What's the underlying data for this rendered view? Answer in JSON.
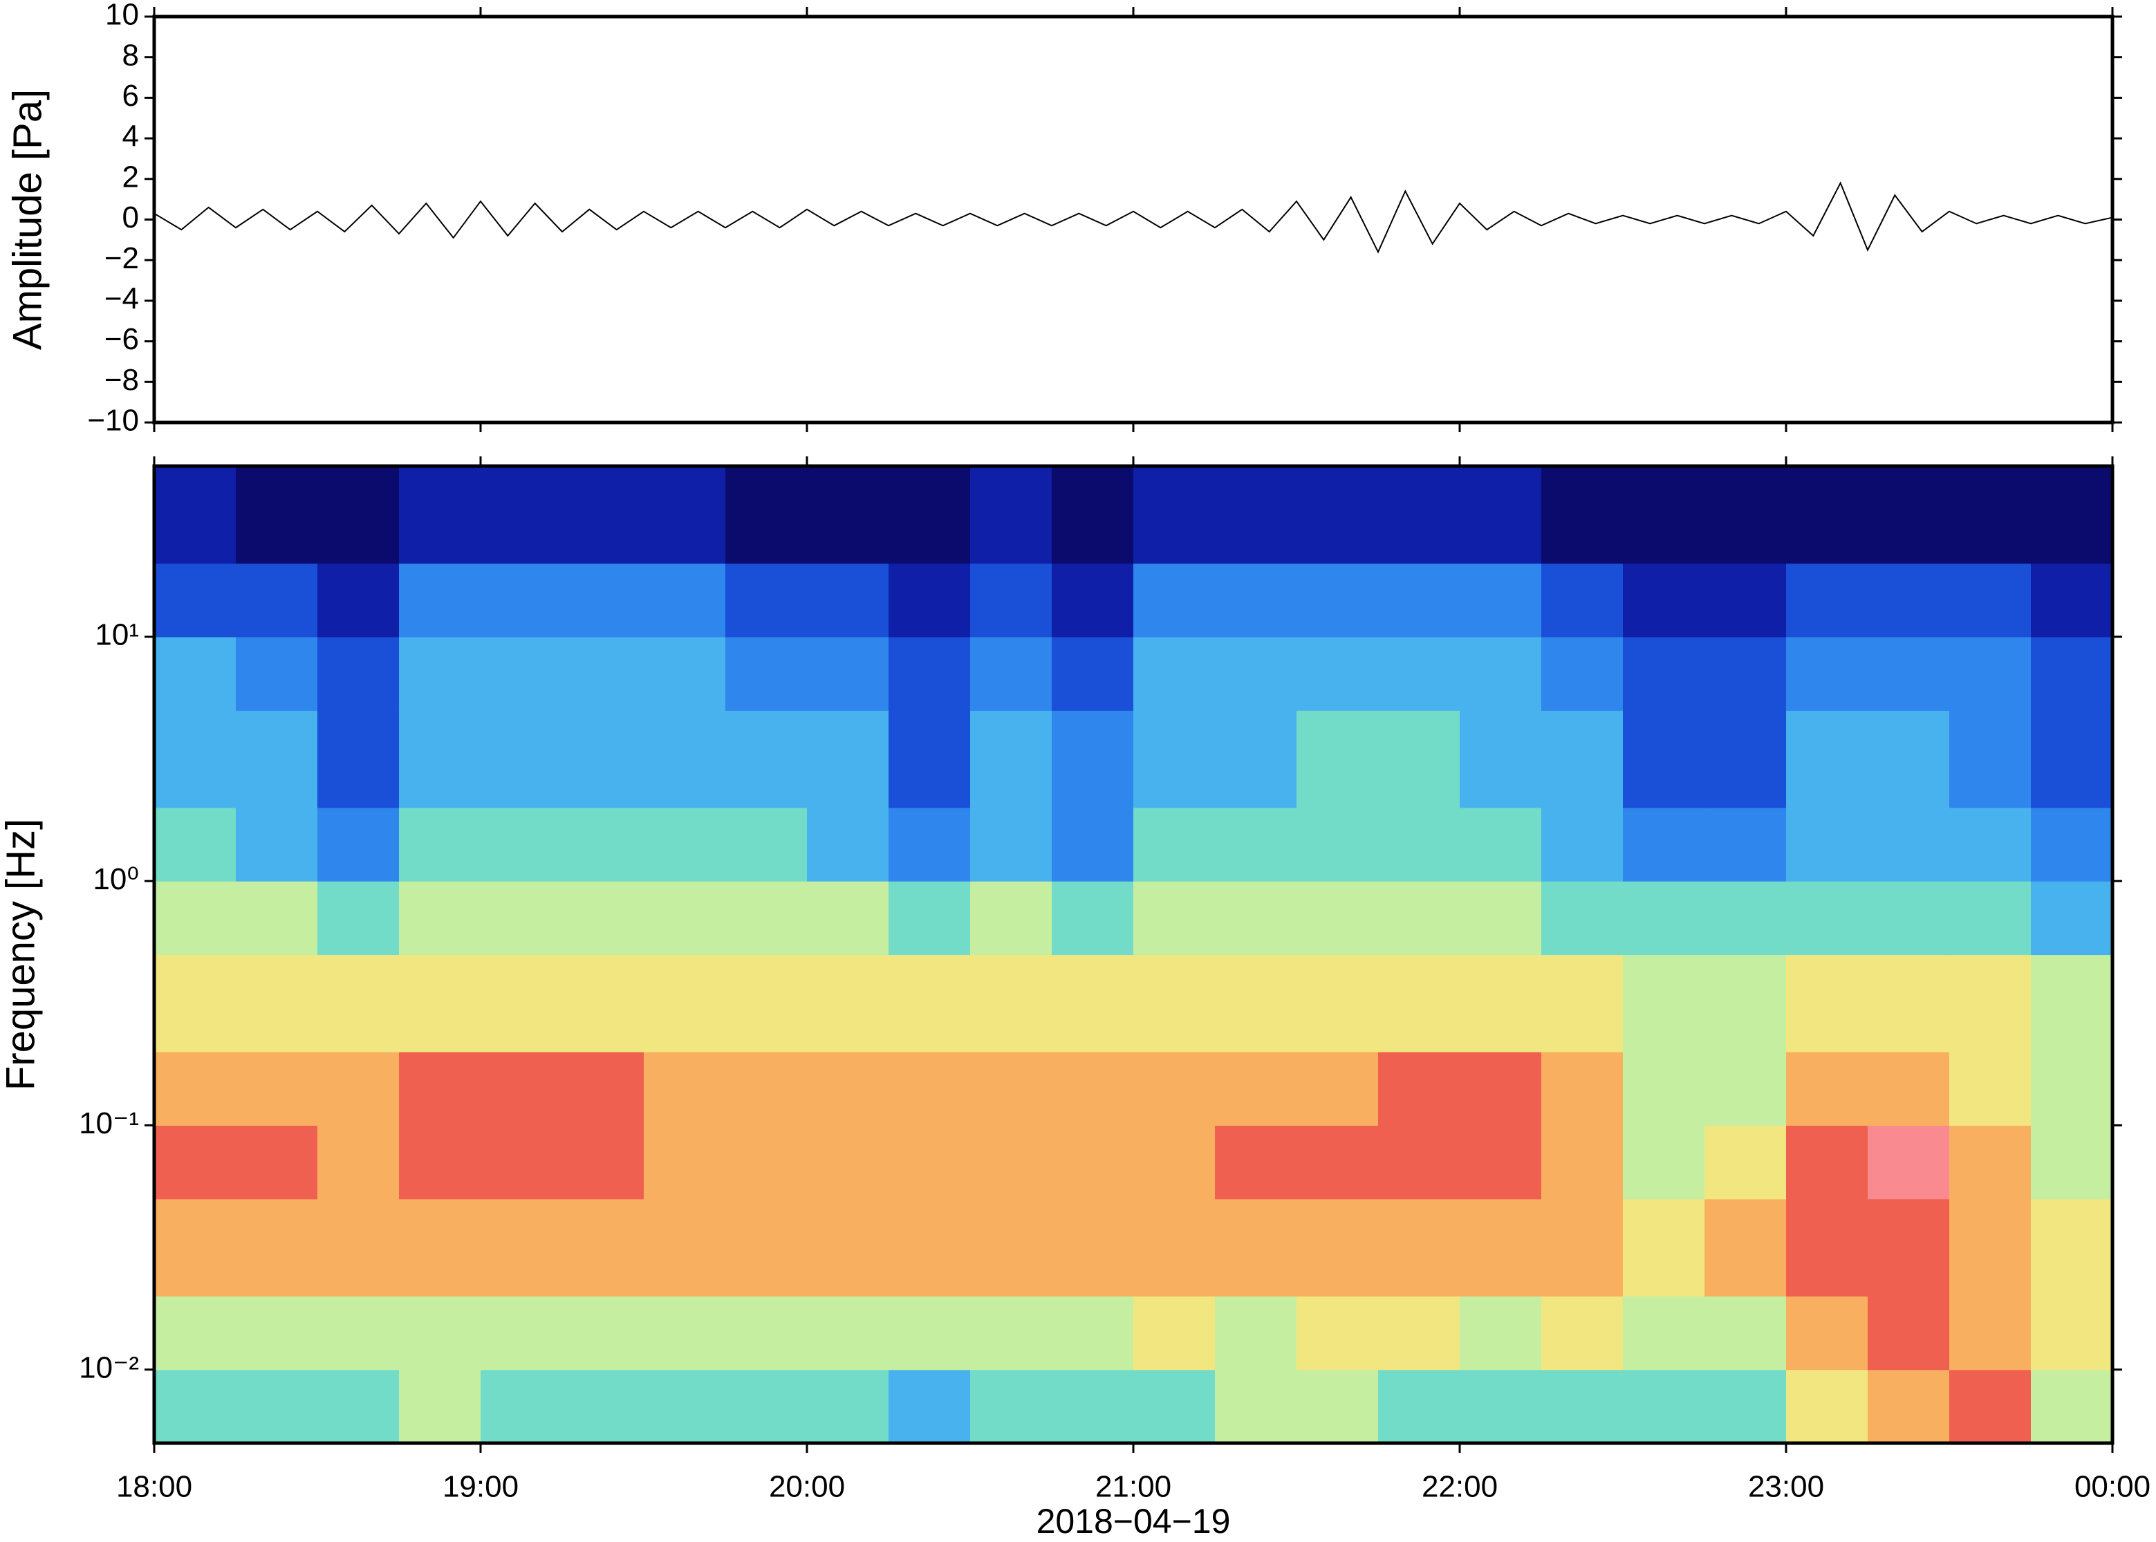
{
  "chart_data": [
    {
      "type": "line",
      "ylabel": "Amplitude [Pa]",
      "color": "#000000",
      "xlim": [
        0,
        360
      ],
      "x": [
        0,
        5,
        10,
        15,
        20,
        25,
        30,
        35,
        40,
        45,
        50,
        55,
        60,
        65,
        70,
        75,
        80,
        85,
        90,
        95,
        100,
        105,
        110,
        115,
        120,
        125,
        130,
        135,
        140,
        145,
        150,
        155,
        160,
        165,
        170,
        175,
        180,
        185,
        190,
        195,
        200,
        205,
        210,
        215,
        220,
        225,
        230,
        235,
        240,
        245,
        250,
        255,
        260,
        265,
        270,
        275,
        280,
        285,
        290,
        295,
        300,
        305,
        310,
        315,
        320,
        325,
        330,
        335,
        340,
        345,
        350,
        355,
        360
      ],
      "values": [
        0.3,
        -0.5,
        0.6,
        -0.4,
        0.5,
        -0.5,
        0.4,
        -0.6,
        0.7,
        -0.7,
        0.8,
        -0.9,
        0.9,
        -0.8,
        0.8,
        -0.6,
        0.5,
        -0.5,
        0.4,
        -0.4,
        0.4,
        -0.4,
        0.4,
        -0.4,
        0.5,
        -0.3,
        0.4,
        -0.3,
        0.3,
        -0.3,
        0.3,
        -0.3,
        0.3,
        -0.3,
        0.3,
        -0.3,
        0.4,
        -0.4,
        0.4,
        -0.4,
        0.5,
        -0.6,
        0.9,
        -1.0,
        1.1,
        -1.6,
        1.4,
        -1.2,
        0.8,
        -0.5,
        0.4,
        -0.3,
        0.3,
        -0.2,
        0.2,
        -0.2,
        0.2,
        -0.2,
        0.2,
        -0.2,
        0.4,
        -0.8,
        1.8,
        -1.5,
        1.2,
        -0.6,
        0.4,
        -0.2,
        0.2,
        -0.2,
        0.2,
        -0.2,
        0.1
      ],
      "ylim": [
        -10,
        10
      ],
      "yticks": [
        {
          "value": -10,
          "label": "−10"
        },
        {
          "value": -8,
          "label": "−8"
        },
        {
          "value": -6,
          "label": "−6"
        },
        {
          "value": -4,
          "label": "−4"
        },
        {
          "value": -2,
          "label": "−2"
        },
        0,
        2,
        4,
        6,
        8,
        10
      ]
    },
    {
      "type": "heatmap",
      "ylabel": "Frequency [Hz]",
      "xlabel": "2018−04−19",
      "log_y": true,
      "xlim": [
        0,
        360
      ],
      "ylim": [
        0.005,
        50
      ],
      "xticks": [
        {
          "value": 0,
          "label": "18:00"
        },
        {
          "value": 60,
          "label": "19:00"
        },
        {
          "value": 120,
          "label": "20:00"
        },
        {
          "value": 180,
          "label": "21:00"
        },
        {
          "value": 240,
          "label": "22:00"
        },
        {
          "value": 300,
          "label": "23:00"
        },
        {
          "value": 360,
          "label": "00:00"
        }
      ],
      "yticks": [
        {
          "value": 0.01,
          "label": "10⁻²"
        },
        {
          "value": 0.1,
          "label": "10⁻¹"
        },
        {
          "value": 1,
          "label": "10⁰"
        },
        {
          "value": 10,
          "label": "10¹"
        }
      ],
      "x_edges": [
        0,
        15,
        30,
        45,
        60,
        75,
        90,
        105,
        120,
        135,
        150,
        165,
        180,
        195,
        210,
        225,
        240,
        255,
        270,
        285,
        300,
        315,
        330,
        345,
        360
      ],
      "y_edges": [
        0.005,
        0.01,
        0.02,
        0.05,
        0.1,
        0.2,
        0.5,
        1,
        2,
        5,
        10,
        20,
        50
      ],
      "zlim": [
        0,
        10
      ],
      "colormap": [
        "#0b0b6e",
        "#0f1fa8",
        "#1a4fd8",
        "#2f86ec",
        "#48b2ee",
        "#72dcc8",
        "#c6eea0",
        "#f2e680",
        "#f8b060",
        "#f06050",
        "#f88a90"
      ],
      "z": [
        [
          5,
          5,
          5,
          6,
          5,
          5,
          5,
          5,
          5,
          4,
          5,
          5,
          5,
          6,
          6,
          5,
          5,
          5,
          5,
          5,
          7,
          8,
          9,
          6
        ],
        [
          6,
          6,
          6,
          6,
          6,
          6,
          6,
          6,
          6,
          6,
          6,
          6,
          7,
          6,
          7,
          7,
          6,
          7,
          6,
          6,
          8,
          9,
          8,
          7
        ],
        [
          8,
          8,
          8,
          8,
          8,
          8,
          8,
          8,
          8,
          8,
          8,
          8,
          8,
          8,
          8,
          8,
          8,
          8,
          7,
          8,
          9,
          9,
          8,
          7
        ],
        [
          9,
          9,
          8,
          9,
          9,
          9,
          8,
          8,
          8,
          8,
          8,
          8,
          8,
          9,
          9,
          9,
          9,
          8,
          6,
          7,
          9,
          10,
          8,
          6
        ],
        [
          8,
          8,
          8,
          9,
          9,
          9,
          8,
          8,
          8,
          8,
          8,
          8,
          8,
          8,
          8,
          9,
          9,
          8,
          6,
          6,
          8,
          8,
          7,
          6
        ],
        [
          7,
          7,
          7,
          7,
          7,
          7,
          7,
          7,
          7,
          7,
          7,
          7,
          7,
          7,
          7,
          7,
          7,
          7,
          6,
          6,
          7,
          7,
          7,
          6
        ],
        [
          6,
          6,
          5,
          6,
          6,
          6,
          6,
          6,
          6,
          5,
          6,
          5,
          6,
          6,
          6,
          6,
          6,
          5,
          5,
          5,
          5,
          5,
          5,
          4
        ],
        [
          5,
          4,
          3,
          5,
          5,
          5,
          5,
          5,
          4,
          3,
          4,
          3,
          5,
          5,
          5,
          5,
          5,
          4,
          3,
          3,
          4,
          4,
          4,
          3
        ],
        [
          4,
          4,
          2,
          4,
          4,
          4,
          4,
          4,
          4,
          2,
          4,
          3,
          4,
          4,
          5,
          5,
          4,
          4,
          2,
          2,
          4,
          4,
          3,
          2
        ],
        [
          4,
          3,
          2,
          4,
          4,
          4,
          4,
          3,
          3,
          2,
          3,
          2,
          4,
          4,
          4,
          4,
          4,
          3,
          2,
          2,
          3,
          3,
          3,
          2
        ],
        [
          2,
          2,
          1,
          3,
          3,
          3,
          3,
          2,
          2,
          1,
          2,
          1,
          3,
          3,
          3,
          3,
          3,
          2,
          1,
          1,
          2,
          2,
          2,
          1
        ],
        [
          1,
          0,
          0,
          1,
          1,
          1,
          1,
          0,
          0,
          0,
          1,
          0,
          1,
          1,
          1,
          1,
          1,
          0,
          0,
          0,
          0,
          0,
          0,
          0
        ]
      ]
    }
  ]
}
